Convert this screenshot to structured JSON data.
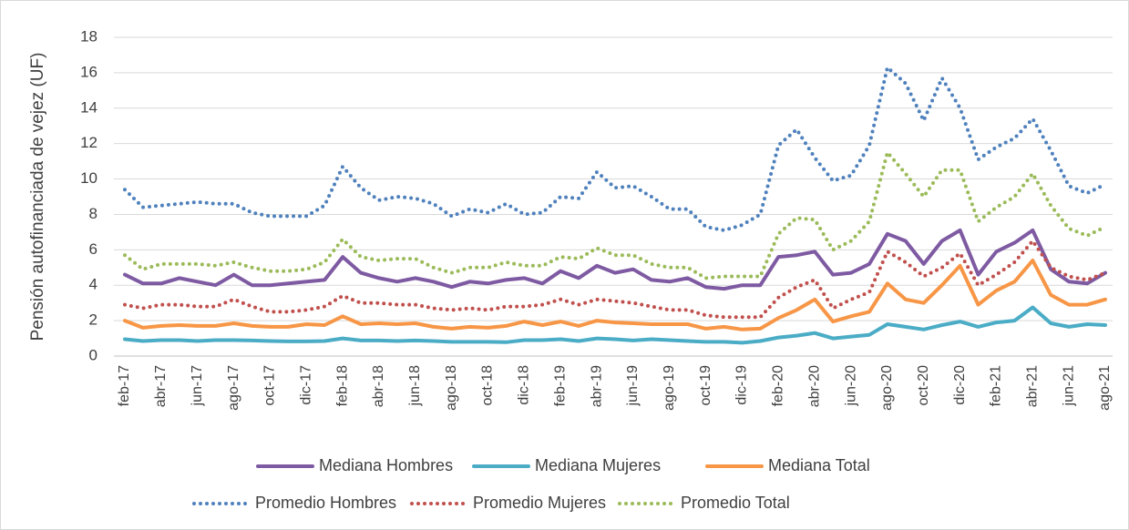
{
  "chart_data": {
    "type": "line",
    "y_label": "Pensión autofinanciada de vejez (UF)",
    "categories": [
      "feb-17",
      null,
      "abr-17",
      null,
      "jun-17",
      null,
      "ago-17",
      null,
      "oct-17",
      null,
      "dic-17",
      null,
      "feb-18",
      null,
      "abr-18",
      null,
      "jun-18",
      null,
      "ago-18",
      null,
      "oct-18",
      null,
      "dic-18",
      null,
      "feb-19",
      null,
      "abr-19",
      null,
      "jun-19",
      null,
      "ago-19",
      null,
      "oct-19",
      null,
      "dic-19",
      null,
      "feb-20",
      null,
      "abr-20",
      null,
      "jun-20",
      null,
      "ago-20",
      null,
      "oct-20",
      null,
      "dic-20",
      null,
      "feb-21",
      null,
      "abr-21",
      null,
      "jun-21",
      null,
      "ago-21"
    ],
    "ylim": [
      0,
      18
    ],
    "yticks": [
      0,
      2,
      4,
      6,
      8,
      10,
      12,
      14,
      16,
      18
    ],
    "grid": true,
    "series": [
      {
        "name": "Mediana Hombres",
        "color": "#7e5aa2",
        "dash": "solid",
        "values": [
          4.6,
          4.1,
          4.1,
          4.4,
          4.2,
          4.0,
          4.6,
          4.0,
          4.0,
          4.1,
          4.2,
          4.3,
          5.6,
          4.7,
          4.4,
          4.2,
          4.4,
          4.2,
          3.9,
          4.2,
          4.1,
          4.3,
          4.4,
          4.1,
          4.8,
          4.4,
          5.1,
          4.7,
          4.9,
          4.3,
          4.2,
          4.4,
          3.9,
          3.8,
          4.0,
          4.0,
          5.6,
          5.7,
          5.9,
          4.6,
          4.7,
          5.2,
          6.9,
          6.5,
          5.2,
          6.5,
          7.1,
          4.6,
          5.9,
          6.4,
          7.1,
          4.9,
          4.2,
          4.1,
          4.7
        ]
      },
      {
        "name": "Mediana Mujeres",
        "color": "#4bacc6",
        "dash": "solid",
        "values": [
          0.95,
          0.85,
          0.9,
          0.9,
          0.85,
          0.9,
          0.9,
          0.88,
          0.85,
          0.83,
          0.83,
          0.85,
          1.0,
          0.88,
          0.88,
          0.85,
          0.88,
          0.85,
          0.8,
          0.8,
          0.8,
          0.78,
          0.9,
          0.9,
          0.95,
          0.85,
          1.0,
          0.95,
          0.88,
          0.95,
          0.9,
          0.85,
          0.8,
          0.8,
          0.75,
          0.85,
          1.05,
          1.15,
          1.3,
          1.0,
          1.1,
          1.2,
          1.8,
          1.65,
          1.5,
          1.75,
          1.95,
          1.65,
          1.9,
          2.0,
          2.75,
          1.85,
          1.65,
          1.8,
          1.75
        ]
      },
      {
        "name": "Mediana Total",
        "color": "#f79646",
        "dash": "solid",
        "values": [
          2.0,
          1.6,
          1.7,
          1.75,
          1.7,
          1.7,
          1.85,
          1.7,
          1.65,
          1.65,
          1.8,
          1.75,
          2.25,
          1.8,
          1.85,
          1.8,
          1.85,
          1.65,
          1.55,
          1.65,
          1.6,
          1.7,
          1.95,
          1.75,
          1.95,
          1.7,
          2.0,
          1.9,
          1.85,
          1.8,
          1.8,
          1.8,
          1.55,
          1.65,
          1.5,
          1.55,
          2.15,
          2.6,
          3.2,
          1.95,
          2.25,
          2.5,
          4.1,
          3.2,
          3.0,
          4.0,
          5.1,
          2.9,
          3.7,
          4.2,
          5.4,
          3.45,
          2.9,
          2.9,
          3.2
        ]
      },
      {
        "name": "Promedio Hombres",
        "color": "#4f81bd",
        "dash": "dotted",
        "values": [
          9.4,
          8.4,
          8.5,
          8.6,
          8.7,
          8.6,
          8.6,
          8.1,
          7.9,
          7.9,
          7.9,
          8.5,
          10.7,
          9.5,
          8.8,
          9.0,
          8.9,
          8.6,
          7.9,
          8.3,
          8.1,
          8.6,
          8.0,
          8.1,
          9.0,
          8.9,
          10.4,
          9.5,
          9.6,
          9.0,
          8.3,
          8.3,
          7.3,
          7.1,
          7.4,
          8.0,
          11.9,
          12.8,
          11.2,
          9.9,
          10.2,
          11.9,
          16.3,
          15.4,
          13.3,
          15.7,
          14.0,
          11.1,
          11.8,
          12.3,
          13.4,
          11.6,
          9.6,
          9.2,
          9.7
        ]
      },
      {
        "name": "Promedio Mujeres",
        "color": "#c0504d",
        "dash": "dotted",
        "values": [
          2.9,
          2.7,
          2.9,
          2.9,
          2.8,
          2.8,
          3.2,
          2.8,
          2.5,
          2.5,
          2.6,
          2.8,
          3.4,
          3.0,
          3.0,
          2.9,
          2.9,
          2.7,
          2.6,
          2.7,
          2.6,
          2.8,
          2.8,
          2.9,
          3.2,
          2.9,
          3.2,
          3.1,
          3.0,
          2.8,
          2.6,
          2.6,
          2.3,
          2.2,
          2.2,
          2.2,
          3.3,
          3.9,
          4.3,
          2.7,
          3.2,
          3.6,
          5.9,
          5.3,
          4.5,
          5.0,
          5.8,
          4.0,
          4.6,
          5.3,
          6.5,
          5.0,
          4.5,
          4.3,
          4.7
        ]
      },
      {
        "name": "Promedio Total",
        "color": "#9bbb59",
        "dash": "dotted",
        "values": [
          5.7,
          4.9,
          5.2,
          5.2,
          5.2,
          5.1,
          5.3,
          5.0,
          4.8,
          4.8,
          4.9,
          5.3,
          6.6,
          5.6,
          5.4,
          5.5,
          5.5,
          5.0,
          4.7,
          5.0,
          5.0,
          5.3,
          5.1,
          5.1,
          5.6,
          5.5,
          6.1,
          5.7,
          5.7,
          5.2,
          5.0,
          5.0,
          4.4,
          4.5,
          4.5,
          4.5,
          6.9,
          7.8,
          7.7,
          6.0,
          6.5,
          7.6,
          11.5,
          10.3,
          9.0,
          10.5,
          10.5,
          7.6,
          8.4,
          9.0,
          10.3,
          8.5,
          7.2,
          6.8,
          7.3
        ]
      }
    ]
  }
}
